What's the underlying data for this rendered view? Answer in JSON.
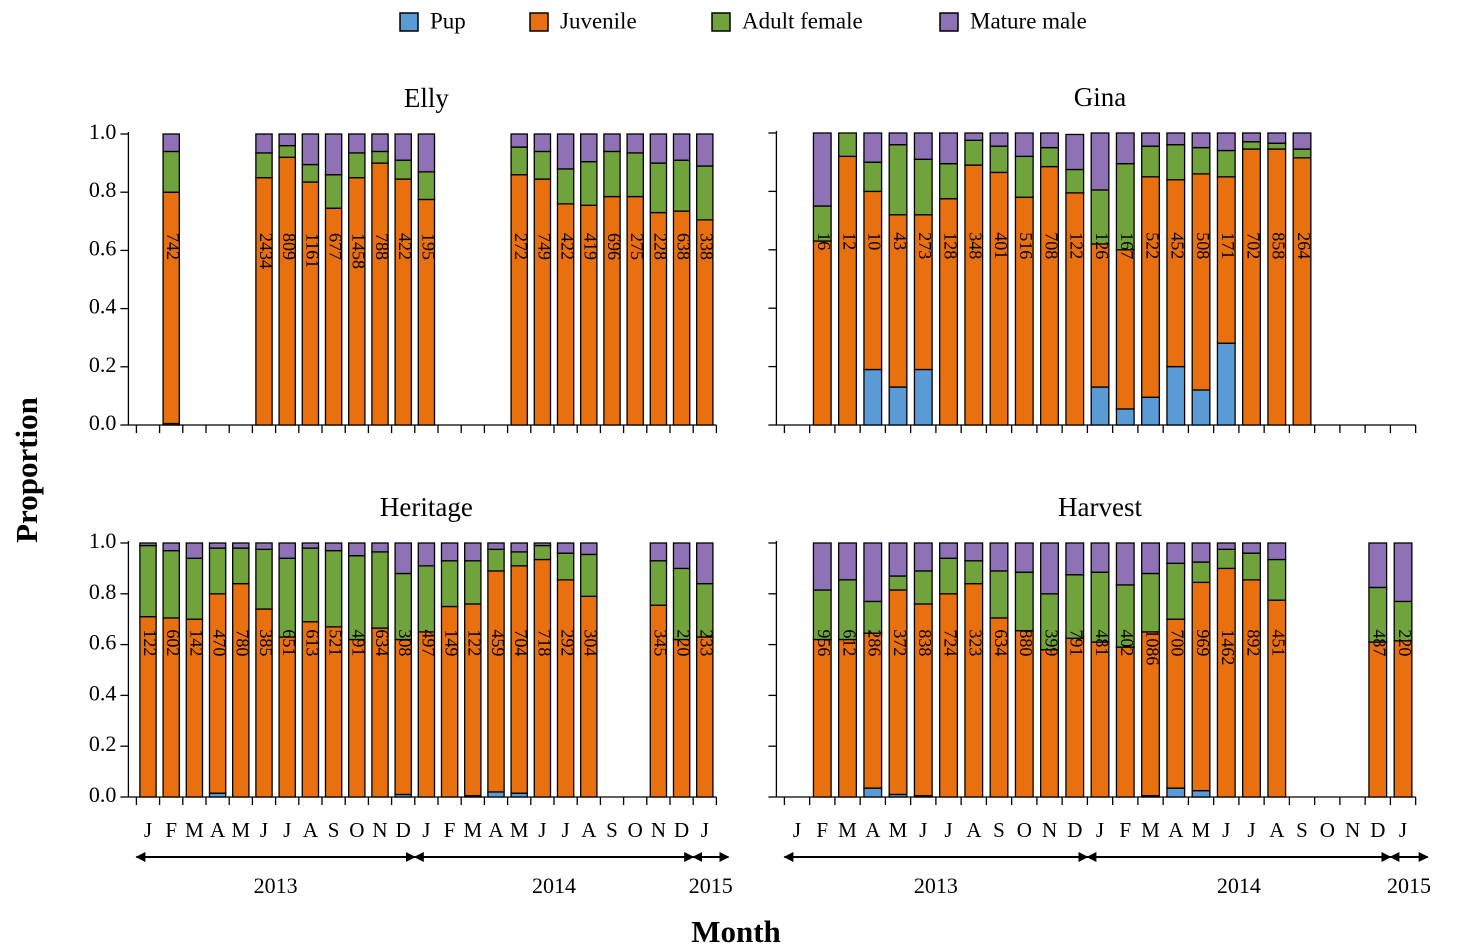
{
  "x_label": "Month",
  "y_label": "Proportion",
  "chart_data": [
    {
      "type": "bar",
      "stacked": true,
      "title": "Elly",
      "categories": [
        null,
        null,
        null,
        null,
        null,
        null,
        null,
        null,
        null,
        null,
        null,
        null,
        null,
        null,
        null,
        null,
        null,
        null,
        null,
        null,
        null,
        null,
        null,
        null,
        null
      ],
      "series": [
        {
          "name": "Pup",
          "color": "#5b9bd5",
          "values": [
            null,
            0.005,
            null,
            null,
            null,
            0,
            0,
            0,
            0,
            0,
            0,
            0,
            0,
            null,
            null,
            null,
            0,
            0,
            0,
            0,
            0,
            0,
            0,
            0,
            0
          ]
        },
        {
          "name": "Juvenile",
          "color": "#e8700f",
          "values": [
            null,
            0.795,
            null,
            null,
            null,
            0.85,
            0.92,
            0.835,
            0.745,
            0.85,
            0.9,
            0.845,
            0.775,
            null,
            null,
            null,
            0.86,
            0.845,
            0.76,
            0.755,
            0.785,
            0.785,
            0.73,
            0.735,
            0.705
          ]
        },
        {
          "name": "Adult female",
          "color": "#70a33c",
          "values": [
            null,
            0.14,
            null,
            null,
            null,
            0.085,
            0.04,
            0.06,
            0.115,
            0.085,
            0.04,
            0.065,
            0.095,
            null,
            null,
            null,
            0.095,
            0.095,
            0.12,
            0.15,
            0.155,
            0.15,
            0.17,
            0.175,
            0.185
          ]
        },
        {
          "name": "Mature male",
          "color": "#8e72b5",
          "values": [
            null,
            0.06,
            null,
            null,
            null,
            0.065,
            0.04,
            0.105,
            0.14,
            0.065,
            0.06,
            0.09,
            0.13,
            null,
            null,
            null,
            0.045,
            0.06,
            0.12,
            0.095,
            0.06,
            0.065,
            0.1,
            0.09,
            0.11
          ]
        }
      ],
      "n": [
        null,
        742,
        null,
        null,
        null,
        2434,
        809,
        1161,
        677,
        1458,
        788,
        422,
        195,
        null,
        null,
        null,
        272,
        749,
        422,
        419,
        696,
        275,
        228,
        638,
        338
      ],
      "ylim": [
        0,
        1
      ],
      "ytick_labels": true,
      "yticks": [
        {
          "value": 0,
          "label": "0.0"
        },
        {
          "value": 0.2,
          "label": "0.2"
        },
        {
          "value": 0.4,
          "label": "0.4"
        },
        {
          "value": 0.6,
          "label": "0.6"
        },
        {
          "value": 0.8,
          "label": "0.8"
        },
        {
          "value": 1,
          "label": "1.0"
        }
      ]
    },
    {
      "type": "bar",
      "stacked": true,
      "title": "Gina",
      "categories": [
        null,
        null,
        null,
        null,
        null,
        null,
        null,
        null,
        null,
        null,
        null,
        null,
        null,
        null,
        null,
        null,
        null,
        null,
        null,
        null,
        null,
        null,
        null,
        null,
        null
      ],
      "series": [
        {
          "name": "Pup",
          "color": "#5b9bd5",
          "values": [
            null,
            0,
            0,
            0.19,
            0.13,
            0.19,
            0,
            0,
            0,
            0,
            0,
            0,
            0.13,
            0.055,
            0.095,
            0.2,
            0.12,
            0.28,
            0,
            0,
            0,
            null,
            null,
            null,
            null
          ]
        },
        {
          "name": "Juvenile",
          "color": "#e8700f",
          "values": [
            null,
            0.63,
            0.92,
            0.61,
            0.59,
            0.53,
            0.775,
            0.89,
            0.865,
            0.78,
            0.885,
            0.795,
            0.49,
            0.545,
            0.755,
            0.64,
            0.74,
            0.57,
            0.945,
            0.945,
            0.915,
            null,
            null,
            null,
            null
          ]
        },
        {
          "name": "Adult female",
          "color": "#70a33c",
          "values": [
            null,
            0.12,
            0.08,
            0.1,
            0.24,
            0.19,
            0.12,
            0.085,
            0.09,
            0.14,
            0.065,
            0.08,
            0.185,
            0.295,
            0.105,
            0.12,
            0.09,
            0.09,
            0.025,
            0.02,
            0.03,
            null,
            null,
            null,
            null
          ]
        },
        {
          "name": "Mature male",
          "color": "#8e72b5",
          "values": [
            null,
            0.25,
            0,
            0.1,
            0.04,
            0.09,
            0.105,
            0.025,
            0.045,
            0.08,
            0.05,
            0.12,
            0.195,
            0.105,
            0.045,
            0.04,
            0.05,
            0.06,
            0.03,
            0.035,
            0.055,
            null,
            null,
            null,
            null
          ]
        }
      ],
      "n": [
        null,
        16,
        12,
        10,
        43,
        273,
        128,
        348,
        401,
        516,
        708,
        122,
        126,
        167,
        522,
        452,
        508,
        171,
        702,
        858,
        264,
        null,
        null,
        null,
        null
      ],
      "ylim": [
        0,
        1
      ],
      "ytick_labels": false,
      "yticks": [
        0,
        0.2,
        0.4,
        0.6,
        0.8,
        1
      ]
    },
    {
      "type": "bar",
      "stacked": true,
      "title": "Heritage",
      "categories": [
        "J",
        "F",
        "M",
        "A",
        "M",
        "J",
        "J",
        "A",
        "S",
        "O",
        "N",
        "D",
        "J",
        "F",
        "M",
        "A",
        "M",
        "J",
        "J",
        "A",
        "S",
        "O",
        "N",
        "D",
        "J"
      ],
      "series": [
        {
          "name": "Pup",
          "color": "#5b9bd5",
          "values": [
            0,
            0,
            0,
            0.015,
            0,
            0,
            0,
            0,
            0,
            0,
            0,
            0.01,
            0,
            0,
            0.005,
            0.02,
            0.015,
            0,
            0,
            0,
            null,
            null,
            0,
            0,
            0
          ]
        },
        {
          "name": "Juvenile",
          "color": "#e8700f",
          "values": [
            0.71,
            0.705,
            0.7,
            0.785,
            0.84,
            0.74,
            0.63,
            0.69,
            0.67,
            0.62,
            0.665,
            0.61,
            0.65,
            0.75,
            0.755,
            0.87,
            0.895,
            0.935,
            0.855,
            0.79,
            null,
            null,
            0.755,
            0.62,
            0.63
          ]
        },
        {
          "name": "Adult female",
          "color": "#70a33c",
          "values": [
            0.28,
            0.265,
            0.24,
            0.18,
            0.14,
            0.235,
            0.31,
            0.29,
            0.3,
            0.33,
            0.3,
            0.26,
            0.26,
            0.18,
            0.17,
            0.085,
            0.055,
            0.055,
            0.105,
            0.165,
            null,
            null,
            0.175,
            0.28,
            0.21
          ]
        },
        {
          "name": "Mature male",
          "color": "#8e72b5",
          "values": [
            0.01,
            0.03,
            0.06,
            0.02,
            0.02,
            0.025,
            0.06,
            0.02,
            0.03,
            0.05,
            0.035,
            0.12,
            0.09,
            0.07,
            0.07,
            0.025,
            0.035,
            0.01,
            0.04,
            0.045,
            null,
            null,
            0.07,
            0.1,
            0.16
          ]
        }
      ],
      "n": [
        122,
        602,
        142,
        470,
        780,
        385,
        651,
        613,
        521,
        491,
        634,
        308,
        497,
        149,
        122,
        459,
        704,
        718,
        292,
        304,
        null,
        null,
        345,
        220,
        233
      ],
      "years": [
        "2013",
        "2014",
        "2015"
      ],
      "ylim": [
        0,
        1
      ],
      "ytick_labels": true,
      "yticks": [
        {
          "value": 0,
          "label": "0.0"
        },
        {
          "value": 0.2,
          "label": "0.2"
        },
        {
          "value": 0.4,
          "label": "0.4"
        },
        {
          "value": 0.6,
          "label": "0.6"
        },
        {
          "value": 0.8,
          "label": "0.8"
        },
        {
          "value": 1,
          "label": "1.0"
        }
      ]
    },
    {
      "type": "bar",
      "stacked": true,
      "title": "Harvest",
      "categories": [
        "J",
        "F",
        "M",
        "A",
        "M",
        "J",
        "J",
        "A",
        "S",
        "O",
        "N",
        "D",
        "J",
        "F",
        "M",
        "A",
        "M",
        "J",
        "J",
        "A",
        "S",
        "O",
        "N",
        "D",
        "J"
      ],
      "series": [
        {
          "name": "Pup",
          "color": "#5b9bd5",
          "values": [
            null,
            0,
            0,
            0.035,
            0.01,
            0.005,
            0,
            0,
            0,
            0,
            0,
            0,
            0,
            0,
            0.005,
            0.035,
            0.025,
            0,
            0,
            0,
            null,
            null,
            null,
            0,
            0
          ]
        },
        {
          "name": "Juvenile",
          "color": "#e8700f",
          "values": [
            null,
            0.62,
            0.62,
            0.61,
            0.805,
            0.755,
            0.8,
            0.84,
            0.705,
            0.655,
            0.58,
            0.625,
            0.61,
            0.59,
            0.645,
            0.665,
            0.82,
            0.9,
            0.855,
            0.775,
            null,
            null,
            null,
            0.61,
            0.615
          ]
        },
        {
          "name": "Adult female",
          "color": "#70a33c",
          "values": [
            null,
            0.195,
            0.235,
            0.125,
            0.055,
            0.13,
            0.14,
            0.09,
            0.185,
            0.23,
            0.22,
            0.25,
            0.275,
            0.245,
            0.23,
            0.22,
            0.08,
            0.075,
            0.105,
            0.16,
            null,
            null,
            null,
            0.215,
            0.155
          ]
        },
        {
          "name": "Mature male",
          "color": "#8e72b5",
          "values": [
            null,
            0.185,
            0.145,
            0.23,
            0.13,
            0.11,
            0.06,
            0.07,
            0.11,
            0.115,
            0.2,
            0.125,
            0.115,
            0.165,
            0.12,
            0.08,
            0.075,
            0.025,
            0.04,
            0.065,
            null,
            null,
            null,
            0.175,
            0.23
          ]
        }
      ],
      "n": [
        null,
        956,
        612,
        286,
        372,
        838,
        724,
        323,
        634,
        880,
        399,
        791,
        481,
        402,
        1086,
        700,
        969,
        1462,
        892,
        451,
        null,
        null,
        null,
        487,
        220
      ],
      "years": [
        "2013",
        "2014",
        "2015"
      ],
      "ylim": [
        0,
        1
      ],
      "ytick_labels": false,
      "yticks": [
        0,
        0.2,
        0.4,
        0.6,
        0.8,
        1
      ]
    }
  ]
}
